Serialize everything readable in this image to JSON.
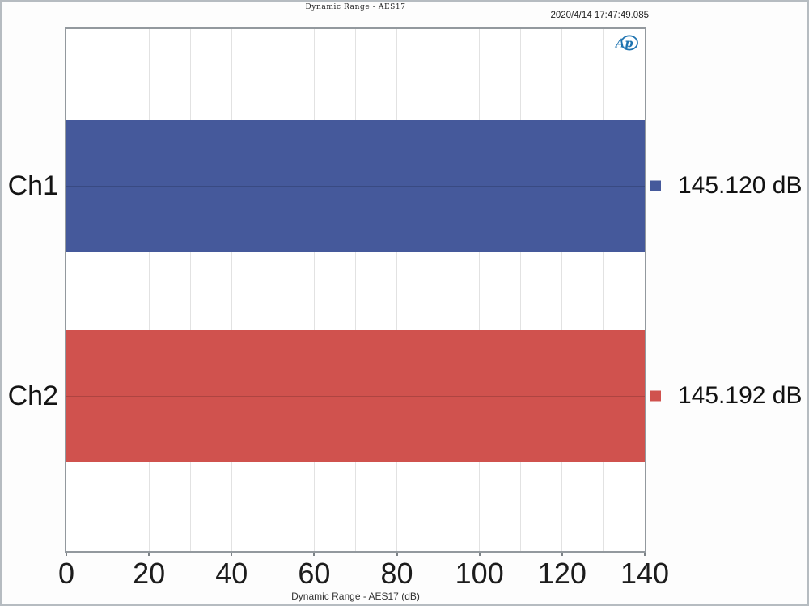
{
  "header": {
    "title": "Dynamic Range - AES17",
    "timestamp": "2020/4/14 17:47:49.085"
  },
  "logo": {
    "text": "Ap",
    "color": "#1e73b0",
    "name": "audio-precision-logo"
  },
  "chart_data": {
    "type": "bar",
    "orientation": "horizontal",
    "title": "Dynamic Range - AES17",
    "categories": [
      "Ch1",
      "Ch2"
    ],
    "values": [
      145.12,
      145.192
    ],
    "value_labels": [
      "145.120 dB",
      "145.192 dB"
    ],
    "units": "dB",
    "bar_colors": [
      "#45599b",
      "#d0524e"
    ],
    "marker_colors": [
      "#45599b",
      "#d0524e"
    ],
    "xlabel": "Dynamic Range - AES17 (dB)",
    "xlim": [
      0,
      140
    ],
    "xticks": [
      0,
      20,
      40,
      60,
      80,
      100,
      120,
      140
    ],
    "minor_grid_step": 10,
    "grid": true,
    "legend_position": "right-of-bars",
    "grid_color": "#e2e2e2",
    "text_color": "#111111"
  }
}
